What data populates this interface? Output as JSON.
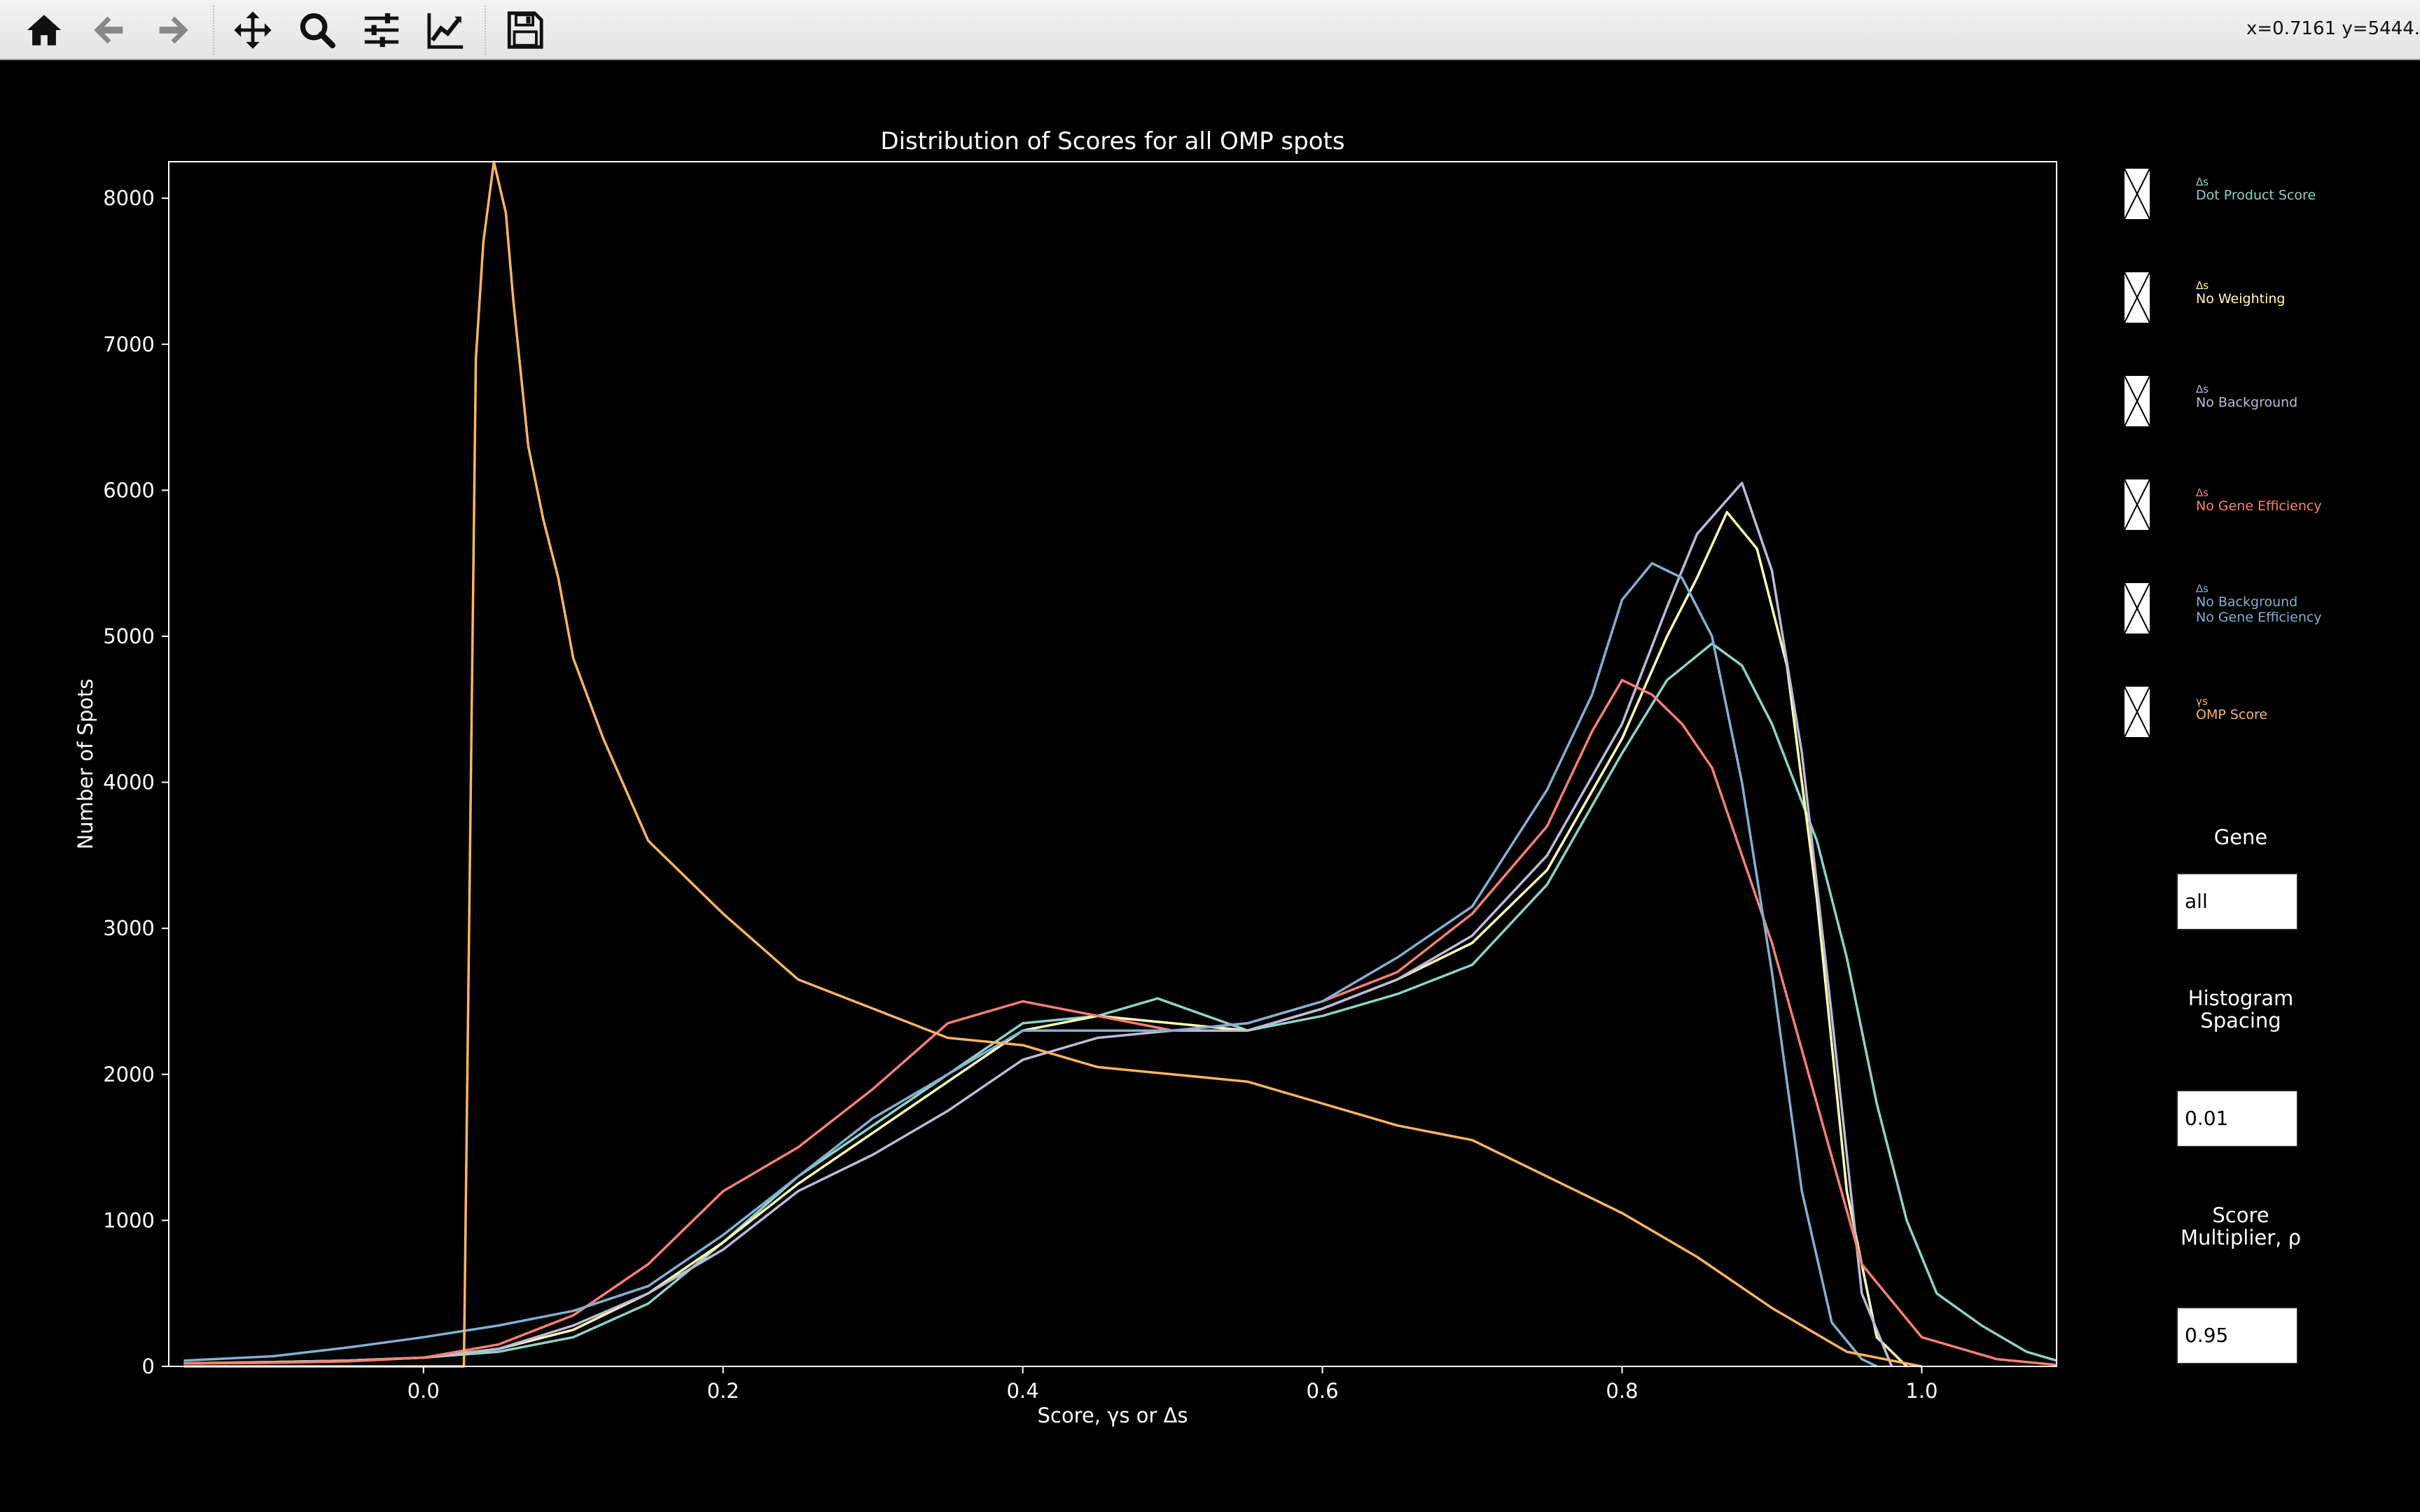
{
  "toolbar": {
    "buttons": [
      {
        "name": "home-icon",
        "interactable": true
      },
      {
        "name": "back-icon",
        "interactable": true
      },
      {
        "name": "forward-icon",
        "interactable": true
      },
      {
        "name": "pan-icon",
        "interactable": true
      },
      {
        "name": "zoom-icon",
        "interactable": true
      },
      {
        "name": "configure-subplots-icon",
        "interactable": true
      },
      {
        "name": "edit-axis-icon",
        "interactable": true
      },
      {
        "name": "save-icon",
        "interactable": true
      }
    ],
    "coords": "x=0.7161 y=5444."
  },
  "legend": {
    "items": [
      {
        "symbol": "Δs",
        "label": "Dot Product Score",
        "color": "#8dd3c7",
        "checked": true
      },
      {
        "symbol": "Δs",
        "label": "No Weighting",
        "color": "#ffffb3",
        "checked": true
      },
      {
        "symbol": "Δs",
        "label": "No Background",
        "color": "#bebada",
        "checked": true
      },
      {
        "symbol": "Δs",
        "label": "No Gene Efficiency",
        "color": "#fb8072",
        "checked": true
      },
      {
        "symbol": "Δs",
        "label": "No Background\nNo Gene Efficiency",
        "color": "#80b1d3",
        "checked": true
      },
      {
        "symbol": "γs",
        "label": "OMP Score",
        "color": "#fdb462",
        "checked": true
      }
    ]
  },
  "controls": {
    "gene": {
      "title": "Gene",
      "value": "all"
    },
    "spacing": {
      "title": "Histogram\nSpacing",
      "value": "0.01"
    },
    "multiplier": {
      "title": "Score\nMultiplier, ρ",
      "value": "0.95"
    }
  },
  "chart_data": {
    "type": "line",
    "title": "Distribution of Scores for all OMP spots",
    "xlabel": "Score, γs or Δs",
    "ylabel": "Number of Spots",
    "xlim": [
      -0.17,
      1.09
    ],
    "ylim": [
      0,
      8250
    ],
    "xticks": [
      0.0,
      0.2,
      0.4,
      0.6,
      0.8,
      1.0
    ],
    "xtick_labels": [
      "0.0",
      "0.2",
      "0.4",
      "0.6",
      "0.8",
      "1.0"
    ],
    "yticks": [
      0,
      1000,
      2000,
      3000,
      4000,
      5000,
      6000,
      7000,
      8000
    ],
    "ytick_labels": [
      "0",
      "1000",
      "2000",
      "3000",
      "4000",
      "5000",
      "6000",
      "7000",
      "8000"
    ],
    "grid": false,
    "series": [
      {
        "name": "Δs Dot Product Score",
        "color": "#8dd3c7",
        "x": [
          -0.16,
          -0.1,
          -0.05,
          0.0,
          0.05,
          0.1,
          0.15,
          0.2,
          0.25,
          0.3,
          0.35,
          0.4,
          0.45,
          0.49,
          0.55,
          0.6,
          0.65,
          0.7,
          0.75,
          0.8,
          0.83,
          0.86,
          0.88,
          0.9,
          0.93,
          0.95,
          0.97,
          0.99,
          1.01,
          1.04,
          1.07,
          1.09
        ],
        "y": [
          20,
          30,
          40,
          60,
          100,
          200,
          430,
          850,
          1300,
          1650,
          2000,
          2350,
          2400,
          2520,
          2300,
          2400,
          2550,
          2750,
          3300,
          4200,
          4700,
          4950,
          4800,
          4400,
          3600,
          2800,
          1800,
          1000,
          500,
          280,
          100,
          40
        ]
      },
      {
        "name": "Δs No Weighting",
        "color": "#ffffb3",
        "x": [
          -0.16,
          -0.1,
          -0.05,
          0.0,
          0.05,
          0.1,
          0.15,
          0.2,
          0.25,
          0.3,
          0.35,
          0.4,
          0.45,
          0.5,
          0.55,
          0.6,
          0.65,
          0.7,
          0.75,
          0.8,
          0.83,
          0.85,
          0.87,
          0.89,
          0.91,
          0.93,
          0.95,
          0.97,
          0.99
        ],
        "y": [
          20,
          30,
          40,
          60,
          120,
          250,
          500,
          850,
          1250,
          1600,
          1950,
          2300,
          2400,
          2350,
          2300,
          2450,
          2650,
          2900,
          3400,
          4300,
          5000,
          5400,
          5850,
          5600,
          4800,
          3200,
          1200,
          200,
          0
        ]
      },
      {
        "name": "Δs No Background",
        "color": "#bebada",
        "x": [
          -0.16,
          -0.1,
          -0.05,
          0.0,
          0.05,
          0.1,
          0.15,
          0.2,
          0.25,
          0.3,
          0.35,
          0.4,
          0.45,
          0.5,
          0.55,
          0.6,
          0.65,
          0.7,
          0.75,
          0.8,
          0.83,
          0.85,
          0.88,
          0.9,
          0.92,
          0.94,
          0.96,
          0.98
        ],
        "y": [
          20,
          30,
          40,
          60,
          120,
          280,
          500,
          800,
          1200,
          1450,
          1750,
          2100,
          2250,
          2300,
          2300,
          2450,
          2650,
          2950,
          3500,
          4400,
          5200,
          5700,
          6050,
          5450,
          4200,
          2400,
          500,
          0
        ]
      },
      {
        "name": "Δs No Gene Efficiency",
        "color": "#fb8072",
        "x": [
          -0.16,
          -0.1,
          -0.05,
          0.0,
          0.05,
          0.1,
          0.15,
          0.2,
          0.25,
          0.3,
          0.35,
          0.4,
          0.45,
          0.5,
          0.55,
          0.6,
          0.65,
          0.7,
          0.75,
          0.78,
          0.8,
          0.82,
          0.84,
          0.86,
          0.88,
          0.9,
          0.93,
          0.96,
          1.0,
          1.05,
          1.09
        ],
        "y": [
          20,
          25,
          35,
          60,
          150,
          350,
          700,
          1200,
          1500,
          1900,
          2350,
          2500,
          2400,
          2300,
          2350,
          2500,
          2700,
          3100,
          3700,
          4350,
          4700,
          4600,
          4400,
          4100,
          3500,
          2900,
          1800,
          700,
          200,
          50,
          10
        ]
      },
      {
        "name": "Δs No Background No Gene Efficiency",
        "color": "#80b1d3",
        "x": [
          -0.16,
          -0.1,
          -0.05,
          0.0,
          0.05,
          0.1,
          0.15,
          0.2,
          0.25,
          0.3,
          0.35,
          0.4,
          0.45,
          0.5,
          0.55,
          0.6,
          0.65,
          0.7,
          0.75,
          0.78,
          0.8,
          0.82,
          0.84,
          0.86,
          0.88,
          0.9,
          0.92,
          0.94,
          0.96,
          0.97
        ],
        "y": [
          40,
          70,
          130,
          200,
          280,
          380,
          550,
          900,
          1300,
          1700,
          2000,
          2300,
          2300,
          2300,
          2350,
          2500,
          2800,
          3150,
          3950,
          4600,
          5250,
          5500,
          5400,
          5000,
          4000,
          2700,
          1200,
          300,
          50,
          0
        ]
      },
      {
        "name": "γs OMP Score",
        "color": "#fdb462",
        "x": [
          -0.16,
          -0.05,
          0.02,
          0.027,
          0.035,
          0.04,
          0.047,
          0.055,
          0.06,
          0.07,
          0.08,
          0.09,
          0.1,
          0.12,
          0.15,
          0.2,
          0.25,
          0.3,
          0.35,
          0.4,
          0.45,
          0.5,
          0.55,
          0.6,
          0.65,
          0.7,
          0.75,
          0.8,
          0.85,
          0.9,
          0.95,
          1.0
        ],
        "y": [
          0,
          0,
          0,
          0,
          6900,
          7700,
          8250,
          7900,
          7300,
          6300,
          5800,
          5400,
          4850,
          4300,
          3600,
          3100,
          2650,
          2450,
          2250,
          2200,
          2050,
          2000,
          1950,
          1800,
          1650,
          1550,
          1300,
          1050,
          750,
          400,
          100,
          0
        ]
      }
    ]
  }
}
